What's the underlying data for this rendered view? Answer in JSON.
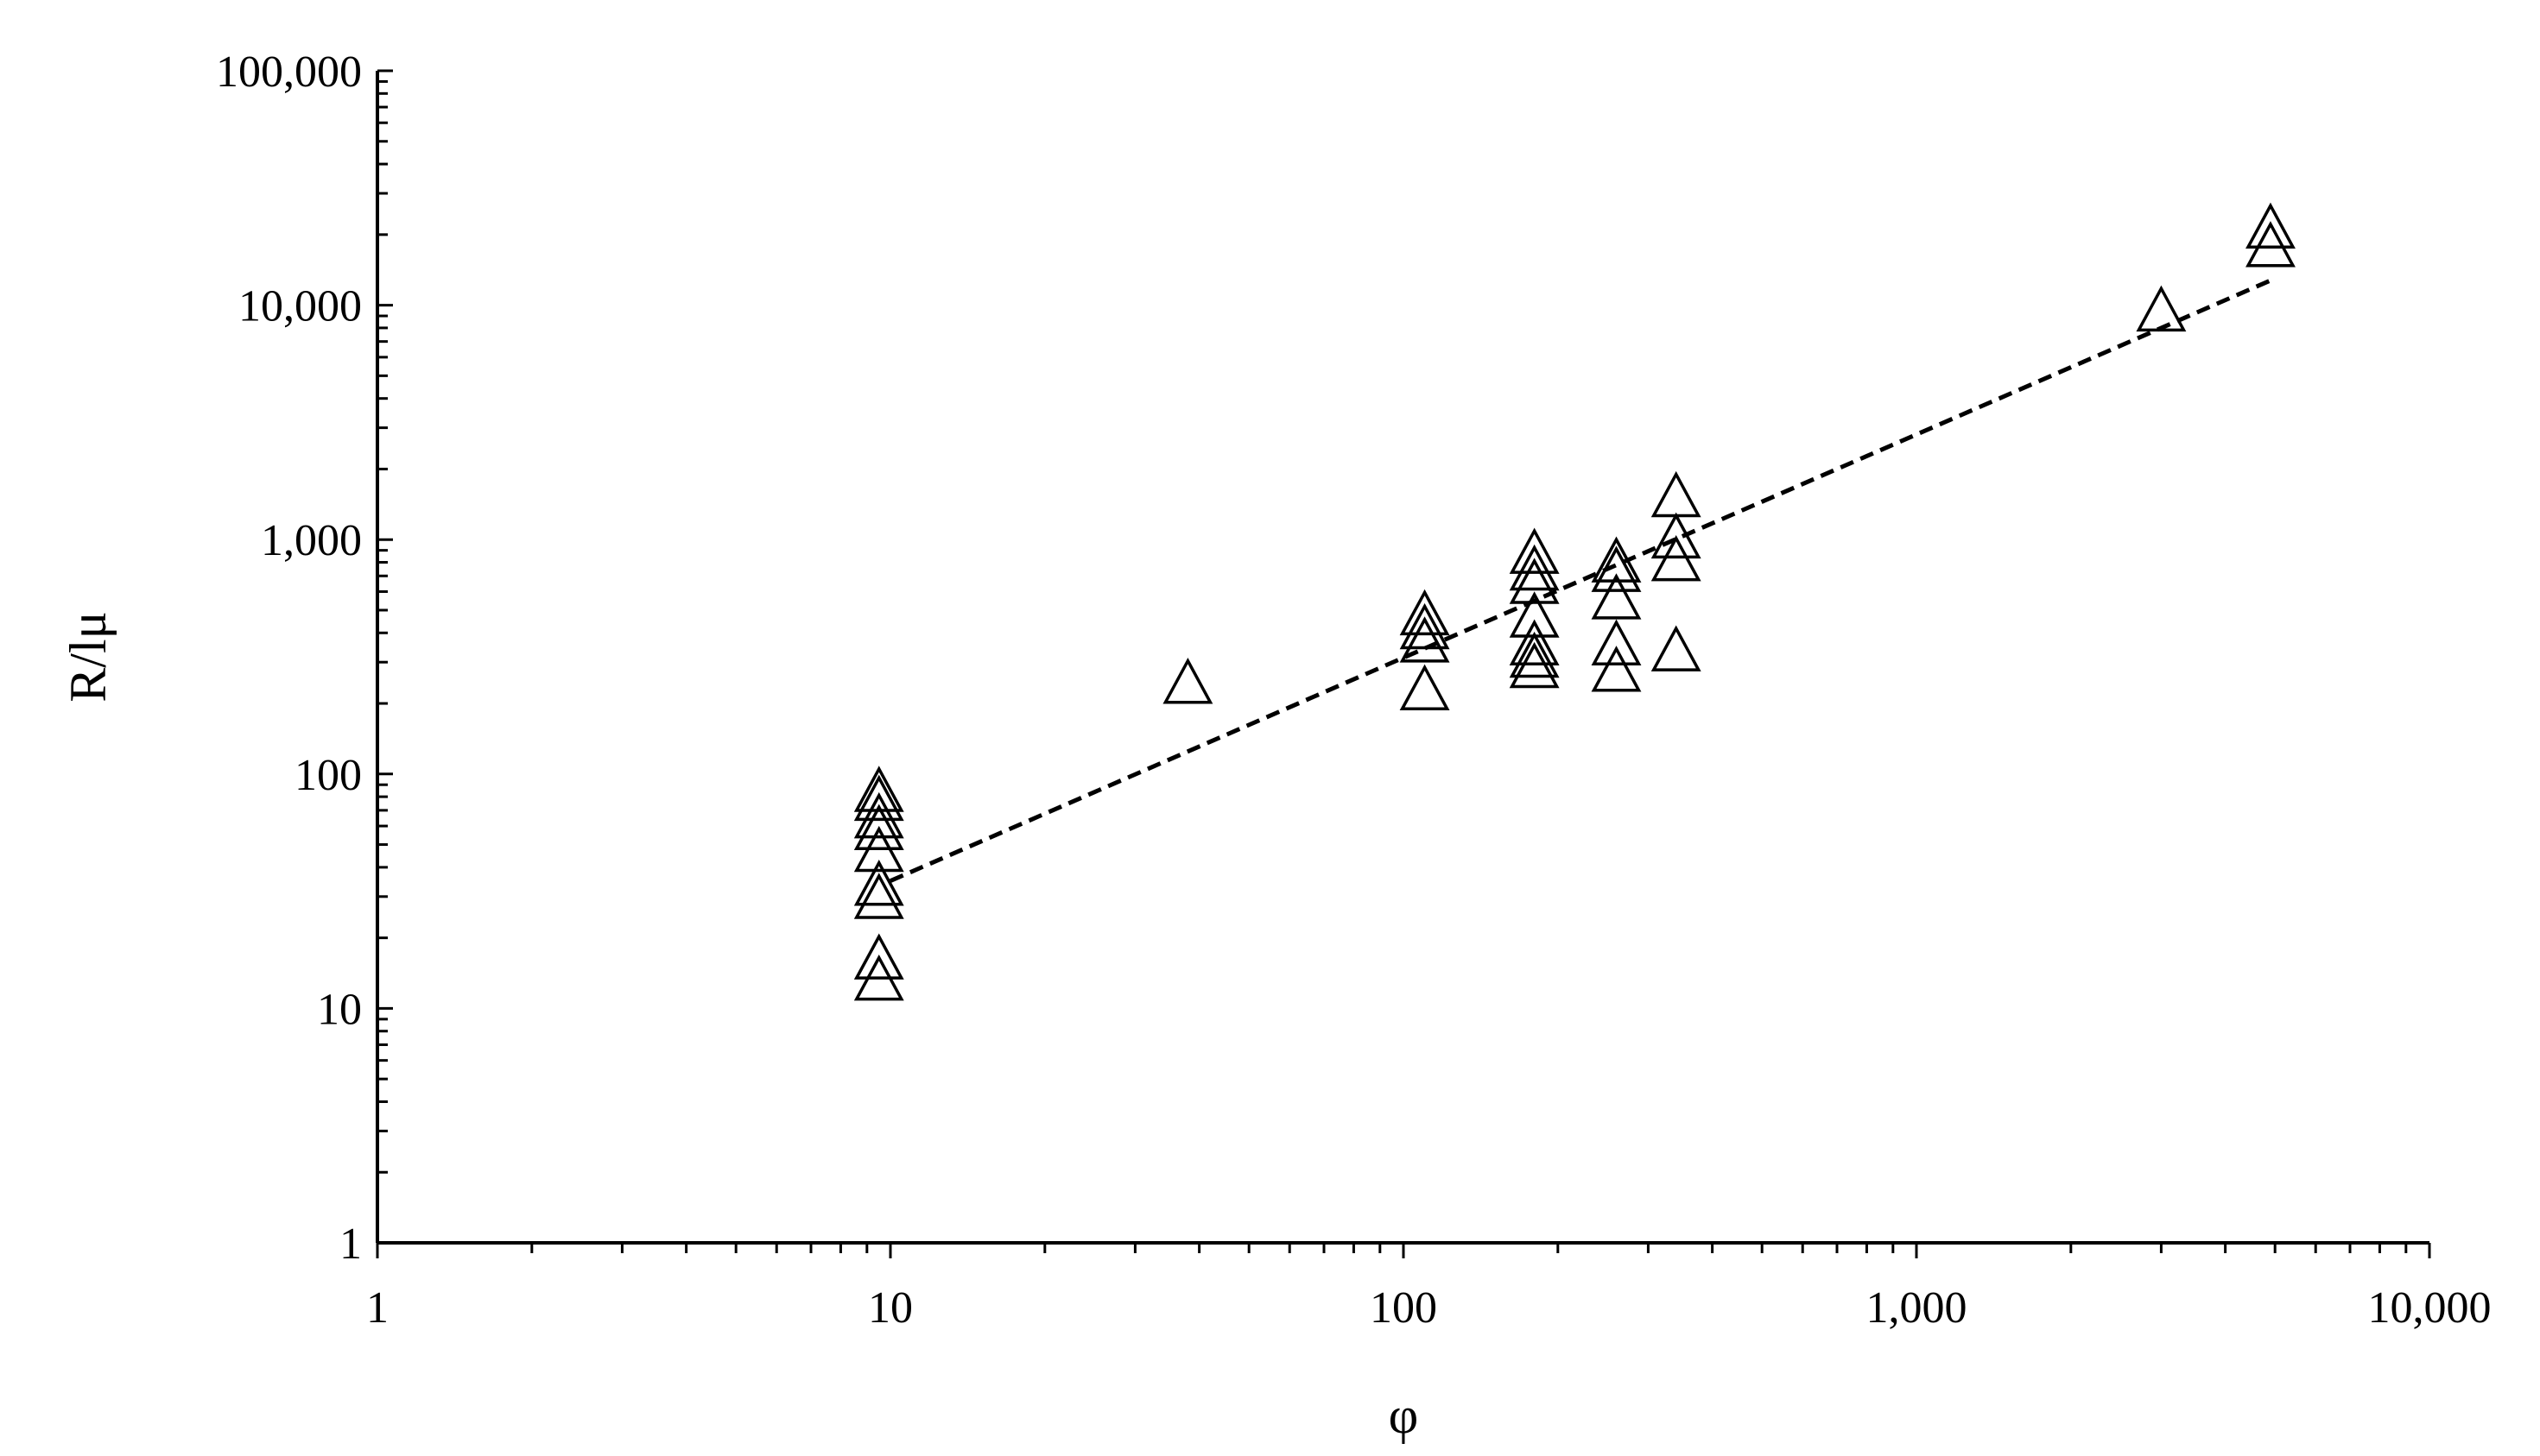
{
  "chart_data": {
    "type": "scatter",
    "xlabel": "φ",
    "ylabel": "R/lμ",
    "x_scale": "log",
    "y_scale": "log",
    "xlim": [
      1,
      10000
    ],
    "ylim": [
      1,
      100000
    ],
    "x_ticks": [
      {
        "value": 1,
        "label": "1"
      },
      {
        "value": 10,
        "label": "10"
      },
      {
        "value": 100,
        "label": "100"
      },
      {
        "value": 1000,
        "label": "1,000"
      },
      {
        "value": 10000,
        "label": "10,000"
      }
    ],
    "y_ticks": [
      {
        "value": 1,
        "label": "1"
      },
      {
        "value": 10,
        "label": "10"
      },
      {
        "value": 100,
        "label": "100"
      },
      {
        "value": 1000,
        "label": "1,000"
      },
      {
        "value": 10000,
        "label": "10,000"
      },
      {
        "value": 100000,
        "label": "100,000"
      }
    ],
    "grid": false,
    "marker": "open-triangle",
    "points": [
      {
        "x": 9.5,
        "y": 13
      },
      {
        "x": 9.5,
        "y": 16
      },
      {
        "x": 9.5,
        "y": 29
      },
      {
        "x": 9.5,
        "y": 33
      },
      {
        "x": 9.5,
        "y": 46
      },
      {
        "x": 9.5,
        "y": 57
      },
      {
        "x": 9.5,
        "y": 64
      },
      {
        "x": 9.5,
        "y": 76
      },
      {
        "x": 9.5,
        "y": 83
      },
      {
        "x": 38,
        "y": 240
      },
      {
        "x": 110,
        "y": 225
      },
      {
        "x": 110,
        "y": 360
      },
      {
        "x": 110,
        "y": 410
      },
      {
        "x": 110,
        "y": 470
      },
      {
        "x": 180,
        "y": 280
      },
      {
        "x": 180,
        "y": 310
      },
      {
        "x": 180,
        "y": 350
      },
      {
        "x": 180,
        "y": 460
      },
      {
        "x": 180,
        "y": 640
      },
      {
        "x": 180,
        "y": 730
      },
      {
        "x": 180,
        "y": 860
      },
      {
        "x": 260,
        "y": 270
      },
      {
        "x": 260,
        "y": 350
      },
      {
        "x": 260,
        "y": 550
      },
      {
        "x": 260,
        "y": 720
      },
      {
        "x": 260,
        "y": 790
      },
      {
        "x": 340,
        "y": 330
      },
      {
        "x": 340,
        "y": 800
      },
      {
        "x": 340,
        "y": 1000
      },
      {
        "x": 340,
        "y": 1500
      },
      {
        "x": 3000,
        "y": 9300
      },
      {
        "x": 4900,
        "y": 17500
      },
      {
        "x": 4900,
        "y": 21000
      }
    ],
    "trendline": {
      "style": "dashed",
      "x": [
        10,
        5000
      ],
      "y": [
        35,
        13000
      ]
    }
  }
}
